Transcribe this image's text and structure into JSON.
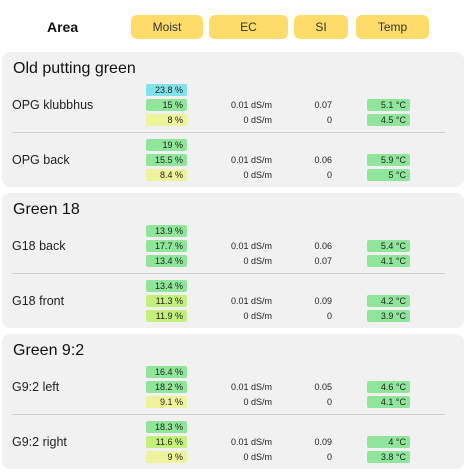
{
  "header": {
    "area_label": "Area",
    "columns": [
      "Moist",
      "EC",
      "SI",
      "Temp"
    ]
  },
  "colors": {
    "pill": "#fddc6a",
    "cyan": "#7fe3e9",
    "green": "#8fe69a",
    "light_green": "#c3f07a",
    "yellow": "#eef29a"
  },
  "groups": [
    {
      "title": "Old putting green",
      "locations": [
        {
          "name": "OPG klubbhus",
          "rows": [
            {
              "moist": "23.8 %",
              "moist_color": "#7fe3e9",
              "ec": "",
              "si": "",
              "temp": "",
              "temp_color": ""
            },
            {
              "moist": "15 %",
              "moist_color": "#8fe69a",
              "ec": "0.01 dS/m",
              "si": "0.07",
              "temp": "5.1 °C",
              "temp_color": "#8fe69a"
            },
            {
              "moist": "8 %",
              "moist_color": "#eef29a",
              "ec": "0 dS/m",
              "si": "0",
              "temp": "4.5 °C",
              "temp_color": "#8fe69a"
            }
          ]
        },
        {
          "name": "OPG back",
          "rows": [
            {
              "moist": "19 %",
              "moist_color": "#8fe69a",
              "ec": "",
              "si": "",
              "temp": "",
              "temp_color": ""
            },
            {
              "moist": "15.5 %",
              "moist_color": "#8fe69a",
              "ec": "0.01 dS/m",
              "si": "0.06",
              "temp": "5.9 °C",
              "temp_color": "#8fe69a"
            },
            {
              "moist": "8.4 %",
              "moist_color": "#eef29a",
              "ec": "0 dS/m",
              "si": "0",
              "temp": "5 °C",
              "temp_color": "#8fe69a"
            }
          ]
        }
      ]
    },
    {
      "title": "Green 18",
      "locations": [
        {
          "name": "G18 back",
          "rows": [
            {
              "moist": "13.9 %",
              "moist_color": "#8fe69a",
              "ec": "",
              "si": "",
              "temp": "",
              "temp_color": ""
            },
            {
              "moist": "17.7 %",
              "moist_color": "#8fe69a",
              "ec": "0.01 dS/m",
              "si": "0.06",
              "temp": "5.4 °C",
              "temp_color": "#8fe69a"
            },
            {
              "moist": "13.4 %",
              "moist_color": "#8fe69a",
              "ec": "0 dS/m",
              "si": "0.07",
              "temp": "4.1 °C",
              "temp_color": "#8fe69a"
            }
          ]
        },
        {
          "name": "G18 front",
          "rows": [
            {
              "moist": "13.4 %",
              "moist_color": "#8fe69a",
              "ec": "",
              "si": "",
              "temp": "",
              "temp_color": ""
            },
            {
              "moist": "11.3 %",
              "moist_color": "#c3f07a",
              "ec": "0.01 dS/m",
              "si": "0.09",
              "temp": "4.2 °C",
              "temp_color": "#8fe69a"
            },
            {
              "moist": "11.9 %",
              "moist_color": "#c3f07a",
              "ec": "0 dS/m",
              "si": "0",
              "temp": "3.9 °C",
              "temp_color": "#8fe69a"
            }
          ]
        }
      ]
    },
    {
      "title": "Green 9:2",
      "locations": [
        {
          "name": "G9:2 left",
          "rows": [
            {
              "moist": "16.4 %",
              "moist_color": "#8fe69a",
              "ec": "",
              "si": "",
              "temp": "",
              "temp_color": ""
            },
            {
              "moist": "18.2 %",
              "moist_color": "#8fe69a",
              "ec": "0.01 dS/m",
              "si": "0.05",
              "temp": "4.6 °C",
              "temp_color": "#8fe69a"
            },
            {
              "moist": "9.1 %",
              "moist_color": "#eef29a",
              "ec": "0 dS/m",
              "si": "0",
              "temp": "4.1 °C",
              "temp_color": "#8fe69a"
            }
          ]
        },
        {
          "name": "G9:2 right",
          "rows": [
            {
              "moist": "18.3 %",
              "moist_color": "#8fe69a",
              "ec": "",
              "si": "",
              "temp": "",
              "temp_color": ""
            },
            {
              "moist": "11.6 %",
              "moist_color": "#c3f07a",
              "ec": "0.01 dS/m",
              "si": "0.09",
              "temp": "4 °C",
              "temp_color": "#8fe69a"
            },
            {
              "moist": "9 %",
              "moist_color": "#eef29a",
              "ec": "0 dS/m",
              "si": "0",
              "temp": "3.8 °C",
              "temp_color": "#8fe69a"
            }
          ]
        }
      ]
    }
  ]
}
